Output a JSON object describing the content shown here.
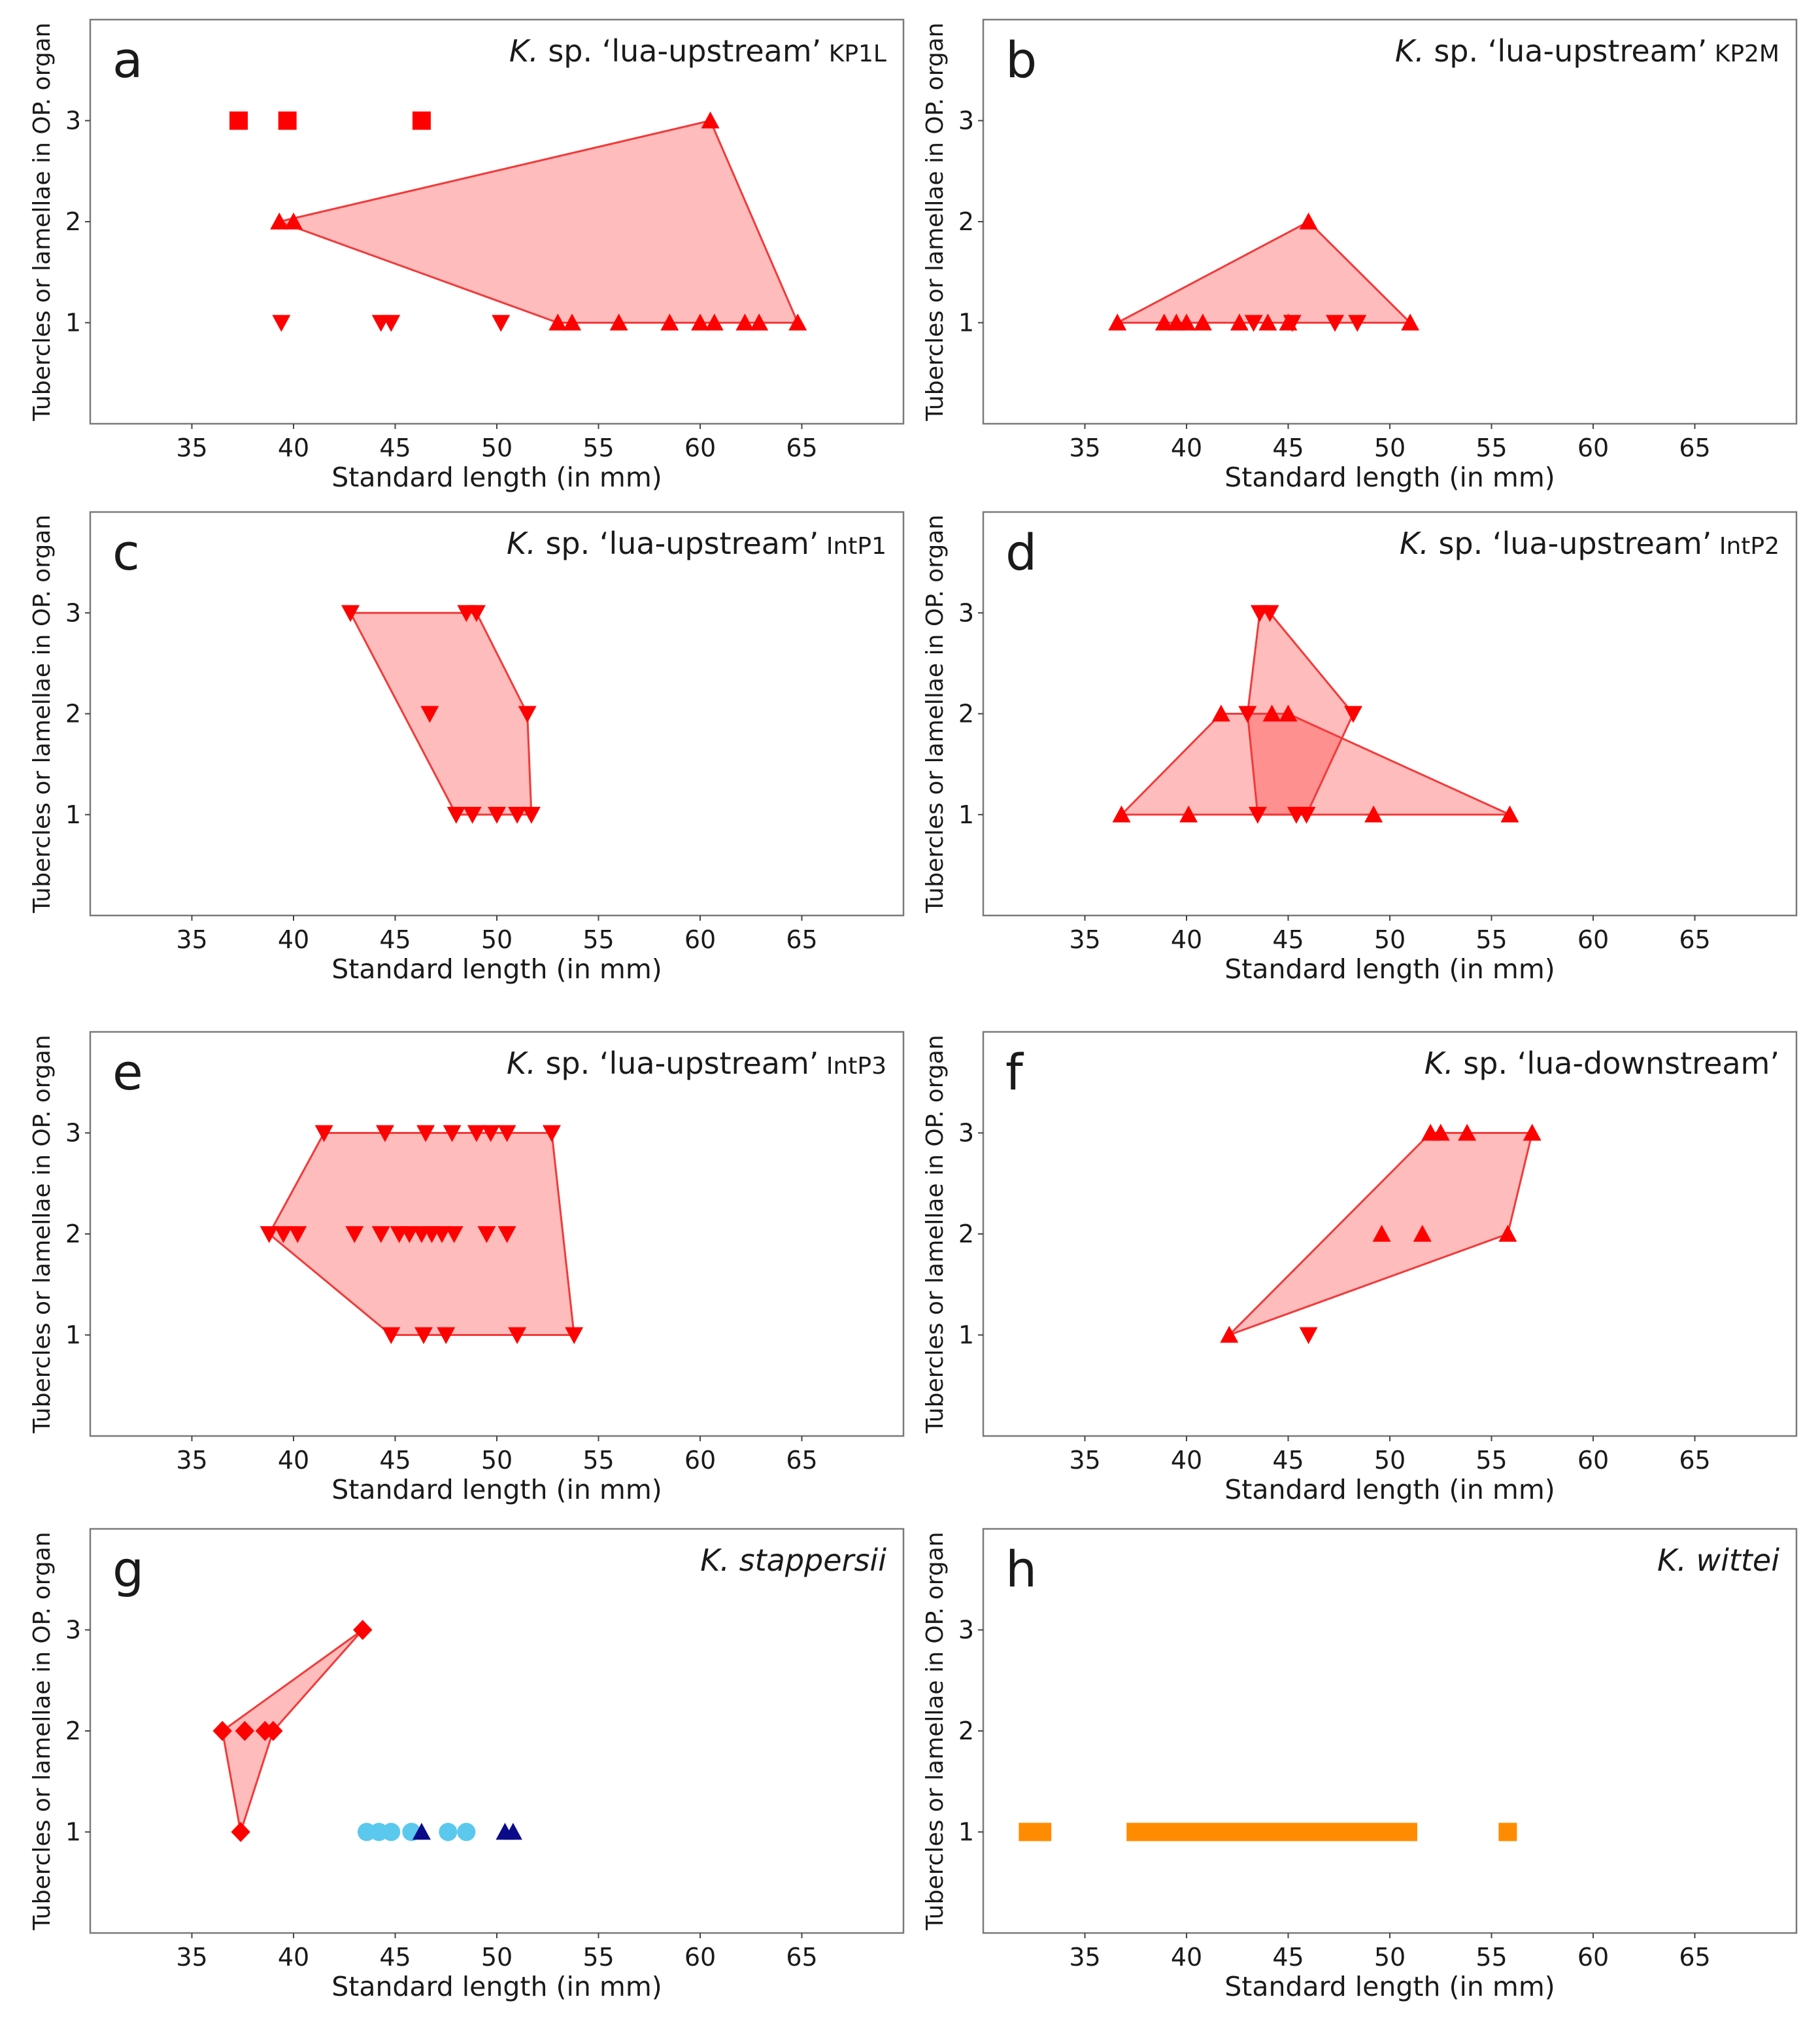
{
  "colors": {
    "red": "#ff0000",
    "hull_fill": "rgba(255,60,60,0.34)",
    "hull_stroke": "#f23a3a",
    "light_blue": "#5bc8ee",
    "dark_blue": "#0b0b8a",
    "orange": "#ff8c00"
  },
  "chart_data": [
    {
      "type": "scatter",
      "panel": "a",
      "title": "K. sp. ‘lua-upstream’ KP1L",
      "title_italic": "K.",
      "title_main": "sp. ‘lua-upstream’",
      "title_sub": "KP1L",
      "xlabel": "Standard length (in mm)",
      "ylabel": "Tubercles or lamellae in OP. organ",
      "xlim": [
        30,
        70
      ],
      "ylim": [
        0,
        4
      ],
      "xticks": [
        35,
        40,
        45,
        50,
        55,
        60,
        65
      ],
      "yticks": [
        1,
        2,
        3
      ],
      "series": [
        {
          "name": "square",
          "marker": "square",
          "color": "#ff0000",
          "points": [
            [
              37.3,
              3
            ],
            [
              39.7,
              3
            ],
            [
              46.3,
              3
            ]
          ]
        },
        {
          "name": "triangle-up",
          "marker": "triangle-up",
          "color": "#ff0000",
          "points": [
            [
              39.3,
              2
            ],
            [
              40.0,
              2
            ],
            [
              60.5,
              3
            ],
            [
              53.0,
              1
            ],
            [
              53.7,
              1
            ],
            [
              56.0,
              1
            ],
            [
              58.5,
              1
            ],
            [
              60.0,
              1
            ],
            [
              60.7,
              1
            ],
            [
              62.2,
              1
            ],
            [
              62.9,
              1
            ],
            [
              64.8,
              1
            ]
          ]
        },
        {
          "name": "triangle-down",
          "marker": "triangle-down",
          "color": "#ff0000",
          "points": [
            [
              39.4,
              1
            ],
            [
              44.3,
              1
            ],
            [
              44.8,
              1
            ],
            [
              50.2,
              1
            ]
          ]
        }
      ],
      "hulls": [
        [
          [
            39.3,
            2
          ],
          [
            60.5,
            3
          ],
          [
            64.8,
            1
          ],
          [
            53.0,
            1
          ]
        ]
      ]
    },
    {
      "type": "scatter",
      "panel": "b",
      "title": "K. sp. ‘lua-upstream’ KP2M",
      "title_italic": "K.",
      "title_main": "sp. ‘lua-upstream’",
      "title_sub": "KP2M",
      "xlabel": "Standard length (in mm)",
      "ylabel": "Tubercles or lamellae in OP. organ",
      "xlim": [
        30,
        70
      ],
      "ylim": [
        0,
        4
      ],
      "xticks": [
        35,
        40,
        45,
        50,
        55,
        60,
        65
      ],
      "yticks": [
        1,
        2,
        3
      ],
      "series": [
        {
          "name": "triangle-up",
          "marker": "triangle-up",
          "color": "#ff0000",
          "points": [
            [
              36.6,
              1
            ],
            [
              38.9,
              1
            ],
            [
              39.5,
              1
            ],
            [
              40.0,
              1
            ],
            [
              40.8,
              1
            ],
            [
              42.6,
              1
            ],
            [
              44.0,
              1
            ],
            [
              45.0,
              1
            ],
            [
              46.0,
              2
            ],
            [
              51.0,
              1
            ]
          ]
        },
        {
          "name": "triangle-down",
          "marker": "triangle-down",
          "color": "#ff0000",
          "points": [
            [
              43.3,
              1
            ],
            [
              45.2,
              1
            ],
            [
              47.3,
              1
            ],
            [
              48.4,
              1
            ]
          ]
        }
      ],
      "hulls": [
        [
          [
            36.6,
            1
          ],
          [
            46.0,
            2
          ],
          [
            51.0,
            1
          ]
        ]
      ]
    },
    {
      "type": "scatter",
      "panel": "c",
      "title": "K. sp. ‘lua-upstream’ IntP1",
      "title_italic": "K.",
      "title_main": "sp. ‘lua-upstream’",
      "title_sub": "IntP1",
      "xlabel": "Standard length (in mm)",
      "ylabel": "Tubercles or lamellae in OP. organ",
      "xlim": [
        30,
        70
      ],
      "ylim": [
        0,
        4
      ],
      "xticks": [
        35,
        40,
        45,
        50,
        55,
        60,
        65
      ],
      "yticks": [
        1,
        2,
        3
      ],
      "series": [
        {
          "name": "triangle-down",
          "marker": "triangle-down",
          "color": "#ff0000",
          "points": [
            [
              42.8,
              3
            ],
            [
              48.5,
              3
            ],
            [
              49.0,
              3
            ],
            [
              46.7,
              2
            ],
            [
              51.5,
              2
            ],
            [
              48.0,
              1
            ],
            [
              48.8,
              1
            ],
            [
              50.0,
              1
            ],
            [
              51.0,
              1
            ],
            [
              51.7,
              1
            ]
          ]
        }
      ],
      "hulls": [
        [
          [
            42.8,
            3
          ],
          [
            49.0,
            3
          ],
          [
            51.5,
            2
          ],
          [
            51.7,
            1
          ],
          [
            48.0,
            1
          ]
        ]
      ]
    },
    {
      "type": "scatter",
      "panel": "d",
      "title": "K. sp. ‘lua-upstream’ IntP2",
      "title_italic": "K.",
      "title_main": "sp. ‘lua-upstream’",
      "title_sub": "IntP2",
      "xlabel": "Standard length (in mm)",
      "ylabel": "Tubercles or lamellae in OP. organ",
      "xlim": [
        30,
        70
      ],
      "ylim": [
        0,
        4
      ],
      "xticks": [
        35,
        40,
        45,
        50,
        55,
        60,
        65
      ],
      "yticks": [
        1,
        2,
        3
      ],
      "series": [
        {
          "name": "triangle-up",
          "marker": "triangle-up",
          "color": "#ff0000",
          "points": [
            [
              36.8,
              1
            ],
            [
              40.1,
              1
            ],
            [
              41.7,
              2
            ],
            [
              44.2,
              2
            ],
            [
              45.0,
              2
            ],
            [
              49.2,
              1
            ],
            [
              55.9,
              1
            ]
          ]
        },
        {
          "name": "triangle-down",
          "marker": "triangle-down",
          "color": "#ff0000",
          "points": [
            [
              43.6,
              3
            ],
            [
              44.1,
              3
            ],
            [
              43.0,
              2
            ],
            [
              48.2,
              2
            ],
            [
              43.5,
              1
            ],
            [
              45.4,
              1
            ],
            [
              45.9,
              1
            ]
          ]
        }
      ],
      "hulls": [
        [
          [
            36.8,
            1
          ],
          [
            41.7,
            2
          ],
          [
            45.0,
            2
          ],
          [
            55.9,
            1
          ]
        ],
        [
          [
            43.6,
            3
          ],
          [
            44.1,
            3
          ],
          [
            48.2,
            2
          ],
          [
            45.9,
            1
          ],
          [
            43.5,
            1
          ],
          [
            43.0,
            2
          ]
        ]
      ]
    },
    {
      "type": "scatter",
      "panel": "e",
      "title": "K. sp. ‘lua-upstream’ IntP3",
      "title_italic": "K.",
      "title_main": "sp. ‘lua-upstream’",
      "title_sub": "IntP3",
      "xlabel": "Standard length (in mm)",
      "ylabel": "Tubercles or lamellae in OP. organ",
      "xlim": [
        30,
        70
      ],
      "ylim": [
        0,
        4
      ],
      "xticks": [
        35,
        40,
        45,
        50,
        55,
        60,
        65
      ],
      "yticks": [
        1,
        2,
        3
      ],
      "series": [
        {
          "name": "triangle-down",
          "marker": "triangle-down",
          "color": "#ff0000",
          "points": [
            [
              41.5,
              3
            ],
            [
              44.5,
              3
            ],
            [
              46.5,
              3
            ],
            [
              47.8,
              3
            ],
            [
              49.0,
              3
            ],
            [
              49.7,
              3
            ],
            [
              50.5,
              3
            ],
            [
              52.7,
              3
            ],
            [
              38.8,
              2
            ],
            [
              39.5,
              2
            ],
            [
              40.2,
              2
            ],
            [
              43.0,
              2
            ],
            [
              44.3,
              2
            ],
            [
              45.2,
              2
            ],
            [
              45.7,
              2
            ],
            [
              46.3,
              2
            ],
            [
              46.8,
              2
            ],
            [
              47.3,
              2
            ],
            [
              47.9,
              2
            ],
            [
              49.5,
              2
            ],
            [
              50.5,
              2
            ],
            [
              44.8,
              1
            ],
            [
              46.4,
              1
            ],
            [
              47.5,
              1
            ],
            [
              51.0,
              1
            ],
            [
              53.8,
              1
            ]
          ]
        }
      ],
      "hulls": [
        [
          [
            38.8,
            2
          ],
          [
            41.5,
            3
          ],
          [
            52.7,
            3
          ],
          [
            53.8,
            1
          ],
          [
            44.8,
            1
          ]
        ]
      ]
    },
    {
      "type": "scatter",
      "panel": "f",
      "title": "K. sp. ‘lua-downstream’",
      "title_italic": "K.",
      "title_main": "sp. ‘lua-downstream’",
      "title_sub": "",
      "xlabel": "Standard length (in mm)",
      "ylabel": "Tubercles or lamellae in OP. organ",
      "xlim": [
        30,
        70
      ],
      "ylim": [
        0,
        4
      ],
      "xticks": [
        35,
        40,
        45,
        50,
        55,
        60,
        65
      ],
      "yticks": [
        1,
        2,
        3
      ],
      "series": [
        {
          "name": "triangle-up",
          "marker": "triangle-up",
          "color": "#ff0000",
          "points": [
            [
              42.1,
              1
            ],
            [
              49.6,
              2
            ],
            [
              51.6,
              2
            ],
            [
              55.8,
              2
            ],
            [
              52.0,
              3
            ],
            [
              52.5,
              3
            ],
            [
              53.8,
              3
            ],
            [
              57.0,
              3
            ]
          ]
        },
        {
          "name": "triangle-down",
          "marker": "triangle-down",
          "color": "#ff0000",
          "points": [
            [
              46.0,
              1
            ]
          ]
        }
      ],
      "hulls": [
        [
          [
            42.1,
            1
          ],
          [
            52.0,
            3
          ],
          [
            57.0,
            3
          ],
          [
            55.8,
            2
          ]
        ]
      ]
    },
    {
      "type": "scatter",
      "panel": "g",
      "title": "K. stappersii",
      "title_italic": "K. stappersii",
      "title_main": "",
      "title_sub": "",
      "xlabel": "Standard length (in mm)",
      "ylabel": "Tubercles or lamellae in OP. organ",
      "xlim": [
        30,
        70
      ],
      "ylim": [
        0,
        4
      ],
      "xticks": [
        35,
        40,
        45,
        50,
        55,
        60,
        65
      ],
      "yticks": [
        1,
        2,
        3
      ],
      "series": [
        {
          "name": "diamond",
          "marker": "diamond",
          "color": "#ff0000",
          "points": [
            [
              36.5,
              2
            ],
            [
              37.6,
              2
            ],
            [
              38.6,
              2
            ],
            [
              39.0,
              2
            ],
            [
              37.4,
              1
            ],
            [
              43.4,
              3
            ]
          ]
        },
        {
          "name": "circle",
          "marker": "circle",
          "color": "#5bc8ee",
          "points": [
            [
              43.6,
              1
            ],
            [
              44.2,
              1
            ],
            [
              44.8,
              1
            ],
            [
              45.8,
              1
            ],
            [
              47.6,
              1
            ],
            [
              48.5,
              1
            ]
          ]
        },
        {
          "name": "triangle-up",
          "marker": "triangle-up",
          "color": "#0b0b8a",
          "points": [
            [
              46.3,
              1
            ],
            [
              50.4,
              1
            ],
            [
              50.8,
              1
            ]
          ]
        }
      ],
      "hulls": [
        [
          [
            36.5,
            2
          ],
          [
            43.4,
            3
          ],
          [
            39.0,
            2
          ],
          [
            37.4,
            1
          ]
        ]
      ]
    },
    {
      "type": "scatter",
      "panel": "h",
      "title": "K. wittei",
      "title_italic": "K. wittei",
      "title_main": "",
      "title_sub": "",
      "xlabel": "Standard length (in mm)",
      "ylabel": "Tubercles or lamellae in OP. organ",
      "xlim": [
        30,
        70
      ],
      "ylim": [
        0,
        4
      ],
      "xticks": [
        35,
        40,
        45,
        50,
        55,
        60,
        65
      ],
      "yticks": [
        1,
        2,
        3
      ],
      "series": [
        {
          "name": "square",
          "marker": "square",
          "color": "#ff8c00",
          "points": [
            [
              32.2,
              1
            ],
            [
              32.9,
              1
            ],
            [
              37.5,
              1
            ],
            [
              38.0,
              1
            ],
            [
              38.5,
              1
            ],
            [
              39.0,
              1
            ],
            [
              39.5,
              1
            ],
            [
              40.0,
              1
            ],
            [
              40.5,
              1
            ],
            [
              41.0,
              1
            ],
            [
              41.5,
              1
            ],
            [
              42.0,
              1
            ],
            [
              42.5,
              1
            ],
            [
              43.0,
              1
            ],
            [
              43.6,
              1
            ],
            [
              44.4,
              1
            ],
            [
              45.2,
              1
            ],
            [
              45.8,
              1
            ],
            [
              46.6,
              1
            ],
            [
              47.2,
              1
            ],
            [
              47.8,
              1
            ],
            [
              48.4,
              1
            ],
            [
              49.0,
              1
            ],
            [
              49.5,
              1
            ],
            [
              50.2,
              1
            ],
            [
              50.9,
              1
            ],
            [
              55.8,
              1
            ]
          ]
        }
      ],
      "hulls": []
    }
  ]
}
